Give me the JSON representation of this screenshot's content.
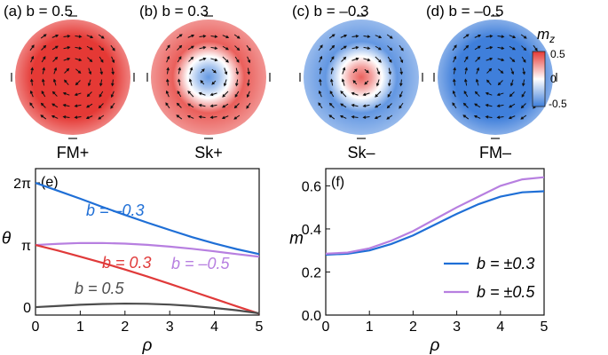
{
  "colors": {
    "red": "#e53935",
    "blue": "#3f7fdb",
    "white": "#ffffff",
    "curve_blue": "#1f6fd6",
    "curve_red": "#e03a3a",
    "curve_purple": "#b77fe0",
    "curve_gray": "#4d4d4d"
  },
  "top_panels": [
    {
      "label": "(a) b = 0.5",
      "caption": "FM+",
      "center_mz": 0.55,
      "edge_mz": 0.45,
      "texture": "ferro"
    },
    {
      "label": "(b) b = 0.3",
      "caption": "Sk+",
      "center_mz": -0.4,
      "edge_mz": 0.45,
      "texture": "skyrmion"
    },
    {
      "label": "(c) b = –0.3",
      "caption": "Sk–",
      "center_mz": 0.4,
      "edge_mz": -0.45,
      "texture": "skyrmion"
    },
    {
      "label": "(d) b = –0.5",
      "caption": "FM–",
      "center_mz": -0.55,
      "edge_mz": -0.45,
      "texture": "ferro"
    }
  ],
  "colorbar": {
    "title": "m_z",
    "ticks": [
      "0.5",
      "0",
      "-0.5"
    ],
    "range": [
      -0.5,
      0.5
    ]
  },
  "chart_data": [
    {
      "panel": "(e)",
      "type": "line",
      "xlabel": "ρ",
      "ylabel": "θ",
      "xlim": [
        0,
        5
      ],
      "ylim": [
        -0.4,
        7.0
      ],
      "xticks": [
        "0",
        "1",
        "2",
        "3",
        "4",
        "5"
      ],
      "yticks": [
        {
          "v": 0,
          "label": "0"
        },
        {
          "v": 3.1416,
          "label": "π"
        },
        {
          "v": 6.2832,
          "label": "2π"
        }
      ],
      "x": [
        0,
        0.5,
        1,
        1.5,
        2,
        2.5,
        3,
        3.5,
        4,
        4.5,
        5
      ],
      "series": [
        {
          "name": "b = –0.3",
          "color": "#1f6fd6",
          "values": [
            6.28,
            5.88,
            5.48,
            5.06,
            4.66,
            4.27,
            3.9,
            3.54,
            3.22,
            2.93,
            2.68
          ]
        },
        {
          "name": "b = –0.5",
          "color": "#b77fe0",
          "values": [
            3.14,
            3.2,
            3.24,
            3.24,
            3.21,
            3.15,
            3.06,
            2.95,
            2.82,
            2.68,
            2.55
          ]
        },
        {
          "name": "b = 0.3",
          "color": "#e03a3a",
          "values": [
            3.14,
            2.86,
            2.55,
            2.24,
            1.9,
            1.55,
            1.18,
            0.8,
            0.42,
            0.04,
            -0.33
          ]
        },
        {
          "name": "b = 0.5",
          "color": "#4d4d4d",
          "values": [
            0.0,
            0.06,
            0.12,
            0.16,
            0.18,
            0.17,
            0.13,
            0.06,
            -0.04,
            -0.16,
            -0.31
          ]
        }
      ]
    },
    {
      "panel": "(f)",
      "type": "line",
      "xlabel": "ρ",
      "ylabel": "m",
      "xlim": [
        0,
        5
      ],
      "ylim": [
        0.0,
        0.68
      ],
      "xticks": [
        "0",
        "1",
        "2",
        "3",
        "4",
        "5"
      ],
      "yticks": [
        {
          "v": 0.0,
          "label": "0.0"
        },
        {
          "v": 0.2,
          "label": "0.2"
        },
        {
          "v": 0.4,
          "label": "0.4"
        },
        {
          "v": 0.6,
          "label": "0.6"
        }
      ],
      "x": [
        0,
        0.5,
        1,
        1.5,
        2,
        2.5,
        3,
        3.5,
        4,
        4.5,
        5
      ],
      "legend": "bottom-right",
      "series": [
        {
          "name": "b = ±0.3",
          "color": "#1f6fd6",
          "values": [
            0.28,
            0.285,
            0.3,
            0.33,
            0.37,
            0.42,
            0.47,
            0.515,
            0.55,
            0.57,
            0.575
          ]
        },
        {
          "name": "b = ±0.5",
          "color": "#b77fe0",
          "values": [
            0.285,
            0.29,
            0.31,
            0.345,
            0.39,
            0.445,
            0.5,
            0.55,
            0.6,
            0.63,
            0.64
          ]
        }
      ]
    }
  ]
}
